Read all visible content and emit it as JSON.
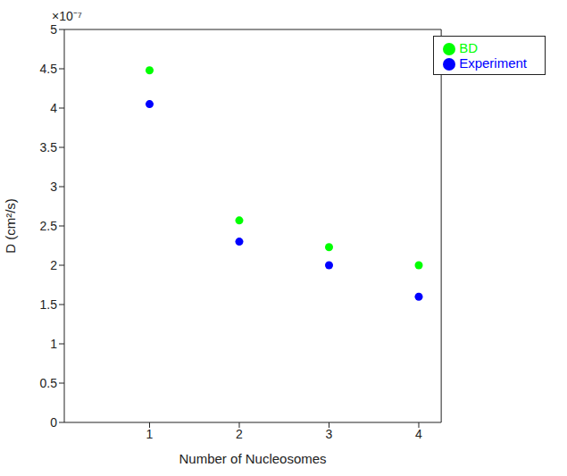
{
  "chart_data": {
    "type": "scatter",
    "x_label": "Number of Nucleosomes",
    "y_label": "D (cm²/s)",
    "annotations": [
      "×10⁻⁷"
    ],
    "xlim": [
      0.05,
      4.25
    ],
    "xticks": [
      1,
      2,
      3,
      4
    ],
    "ylim": [
      0,
      5
    ],
    "yticks": [
      0,
      0.5,
      1,
      1.5,
      2,
      2.5,
      3,
      3.5,
      4,
      4.5,
      5
    ],
    "grid": false,
    "legend": "top-right",
    "series": [
      {
        "name": "Experiment",
        "color": "#0000ff",
        "marker": "circle",
        "x": [
          1,
          2,
          3,
          4
        ],
        "values": [
          4.05,
          2.3,
          2.0,
          1.6
        ]
      },
      {
        "name": "BD",
        "color": "#00ff00",
        "marker": "circle",
        "x": [
          1,
          2,
          3,
          4
        ],
        "values": [
          4.48,
          2.57,
          2.23,
          2.0
        ]
      }
    ]
  }
}
